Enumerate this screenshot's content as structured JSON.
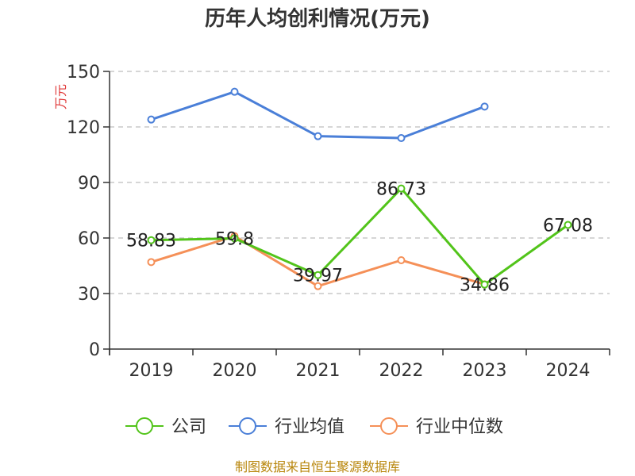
{
  "chart_data": {
    "type": "line",
    "title": "历年人均创利情况(万元)",
    "ylabel": "万元",
    "categories": [
      "2019",
      "2020",
      "2021",
      "2022",
      "2023",
      "2024"
    ],
    "y_ticks": [
      0,
      30,
      60,
      90,
      120,
      150
    ],
    "ylim": [
      0,
      150
    ],
    "grid": true,
    "legend_position": "bottom",
    "series": [
      {
        "name": "公司",
        "color": "#52c41a",
        "values": [
          58.83,
          59.8,
          39.97,
          86.73,
          34.86,
          67.08
        ],
        "labels": [
          "58.83",
          "59.8",
          "39.97",
          "86.73",
          "34.86",
          "67.08"
        ]
      },
      {
        "name": "行业均值",
        "color": "#4a7fd8",
        "values": [
          124,
          139,
          115,
          114,
          131,
          null
        ]
      },
      {
        "name": "行业中位数",
        "color": "#f59058",
        "values": [
          47,
          61,
          34,
          48,
          35,
          null
        ]
      }
    ],
    "source": "制图数据来自恒生聚源数据库"
  }
}
